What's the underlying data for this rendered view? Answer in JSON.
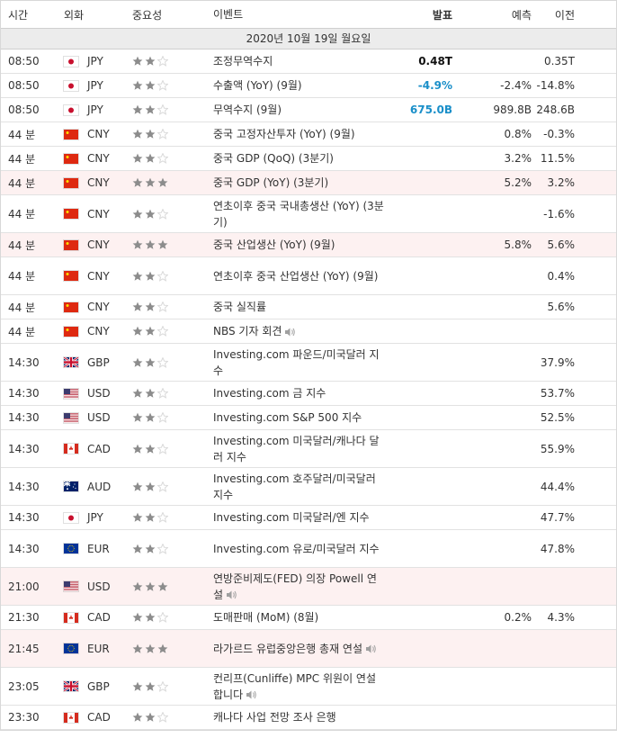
{
  "header": {
    "time": "시간",
    "currency": "외화",
    "importance": "중요성",
    "event": "이벤트",
    "actual": "발표",
    "forecast": "예측",
    "previous": "이전"
  },
  "date_label": "2020년 10월 19일 월요일",
  "colors": {
    "star_on": "#8c8c8c",
    "star_off": "#d9d9d9",
    "actual_green": "#1f8f2b",
    "actual_blue": "#1a8fc9",
    "highlight_bg": "#fdf1f1"
  },
  "rows": [
    {
      "time": "08:50",
      "flag": "jp",
      "currency": "JPY",
      "stars": 2,
      "event": "조정무역수지",
      "actual": "0.48T",
      "actual_color": "black",
      "forecast": "",
      "previous": "0.35T",
      "speaker": false,
      "highlight": false
    },
    {
      "time": "08:50",
      "flag": "jp",
      "currency": "JPY",
      "stars": 2,
      "event": "수출액 (YoY) (9월)",
      "actual": "-4.9%",
      "actual_color": "blue",
      "forecast": "-2.4%",
      "previous": "-14.8%",
      "speaker": false,
      "highlight": false
    },
    {
      "time": "08:50",
      "flag": "jp",
      "currency": "JPY",
      "stars": 2,
      "event": "무역수지 (9월)",
      "actual": "675.0B",
      "actual_color": "blue",
      "forecast": "989.8B",
      "previous": "248.6B",
      "speaker": false,
      "highlight": false
    },
    {
      "time": "44 분",
      "flag": "cn",
      "currency": "CNY",
      "stars": 2,
      "event": "중국 고정자산투자 (YoY) (9월)",
      "actual": "",
      "actual_color": "black",
      "forecast": "0.8%",
      "previous": "-0.3%",
      "speaker": false,
      "highlight": false
    },
    {
      "time": "44 분",
      "flag": "cn",
      "currency": "CNY",
      "stars": 2,
      "event": "중국 GDP (QoQ) (3분기)",
      "actual": "",
      "actual_color": "black",
      "forecast": "3.2%",
      "previous": "11.5%",
      "speaker": false,
      "highlight": false
    },
    {
      "time": "44 분",
      "flag": "cn",
      "currency": "CNY",
      "stars": 3,
      "event": "중국 GDP (YoY) (3분기)",
      "actual": "",
      "actual_color": "black",
      "forecast": "5.2%",
      "previous": "3.2%",
      "speaker": false,
      "highlight": true
    },
    {
      "time": "44 분",
      "flag": "cn",
      "currency": "CNY",
      "stars": 2,
      "event": "연초이후 중국 국내총생산 (YoY) (3분기)",
      "actual": "",
      "actual_color": "black",
      "forecast": "",
      "previous": "-1.6%",
      "speaker": false,
      "highlight": false
    },
    {
      "time": "44 분",
      "flag": "cn",
      "currency": "CNY",
      "stars": 3,
      "event": "중국 산업생산 (YoY) (9월)",
      "actual": "",
      "actual_color": "black",
      "forecast": "5.8%",
      "previous": "5.6%",
      "speaker": false,
      "highlight": true
    },
    {
      "time": "44 분",
      "flag": "cn",
      "currency": "CNY",
      "stars": 2,
      "event": "연초이후 중국 산업생산 (YoY) (9월)",
      "actual": "",
      "actual_color": "black",
      "forecast": "",
      "previous": "0.4%",
      "speaker": false,
      "highlight": false
    },
    {
      "time": "44 분",
      "flag": "cn",
      "currency": "CNY",
      "stars": 2,
      "event": "중국 실직률",
      "actual": "",
      "actual_color": "black",
      "forecast": "",
      "previous": "5.6%",
      "speaker": false,
      "highlight": false
    },
    {
      "time": "44 분",
      "flag": "cn",
      "currency": "CNY",
      "stars": 2,
      "event": "NBS 기자 회견",
      "actual": "",
      "actual_color": "black",
      "forecast": "",
      "previous": "",
      "speaker": true,
      "highlight": false
    },
    {
      "time": "14:30",
      "flag": "gb",
      "currency": "GBP",
      "stars": 2,
      "event": "Investing.com 파운드/미국달러 지수",
      "actual": "",
      "actual_color": "black",
      "forecast": "",
      "previous": "37.9%",
      "speaker": false,
      "highlight": false
    },
    {
      "time": "14:30",
      "flag": "us",
      "currency": "USD",
      "stars": 2,
      "event": "Investing.com 금 지수",
      "actual": "",
      "actual_color": "black",
      "forecast": "",
      "previous": "53.7%",
      "speaker": false,
      "highlight": false
    },
    {
      "time": "14:30",
      "flag": "us",
      "currency": "USD",
      "stars": 2,
      "event": "Investing.com S&P 500 지수",
      "actual": "",
      "actual_color": "black",
      "forecast": "",
      "previous": "52.5%",
      "speaker": false,
      "highlight": false
    },
    {
      "time": "14:30",
      "flag": "ca",
      "currency": "CAD",
      "stars": 2,
      "event": "Investing.com 미국달러/캐나다 달러 지수",
      "actual": "",
      "actual_color": "black",
      "forecast": "",
      "previous": "55.9%",
      "speaker": false,
      "highlight": false
    },
    {
      "time": "14:30",
      "flag": "au",
      "currency": "AUD",
      "stars": 2,
      "event": "Investing.com 호주달러/미국달러 지수",
      "actual": "",
      "actual_color": "black",
      "forecast": "",
      "previous": "44.4%",
      "speaker": false,
      "highlight": false
    },
    {
      "time": "14:30",
      "flag": "jp",
      "currency": "JPY",
      "stars": 2,
      "event": "Investing.com 미국달러/엔 지수",
      "actual": "",
      "actual_color": "black",
      "forecast": "",
      "previous": "47.7%",
      "speaker": false,
      "highlight": false
    },
    {
      "time": "14:30",
      "flag": "eu",
      "currency": "EUR",
      "stars": 2,
      "event": "Investing.com 유로/미국달러 지수",
      "actual": "",
      "actual_color": "black",
      "forecast": "",
      "previous": "47.8%",
      "speaker": false,
      "highlight": false
    },
    {
      "time": "21:00",
      "flag": "us",
      "currency": "USD",
      "stars": 3,
      "event": "연방준비제도(FED) 의장 Powell 연설",
      "actual": "",
      "actual_color": "black",
      "forecast": "",
      "previous": "",
      "speaker": true,
      "highlight": true
    },
    {
      "time": "21:30",
      "flag": "ca",
      "currency": "CAD",
      "stars": 2,
      "event": "도매판매 (MoM) (8월)",
      "actual": "",
      "actual_color": "black",
      "forecast": "0.2%",
      "previous": "4.3%",
      "speaker": false,
      "highlight": false
    },
    {
      "time": "21:45",
      "flag": "eu",
      "currency": "EUR",
      "stars": 3,
      "event": "라가르드 유럽중앙은행 총재 연설",
      "actual": "",
      "actual_color": "black",
      "forecast": "",
      "previous": "",
      "speaker": true,
      "highlight": true
    },
    {
      "time": "23:05",
      "flag": "gb",
      "currency": "GBP",
      "stars": 2,
      "event": "컨리프(Cunliffe) MPC 위원이 연설합니다",
      "actual": "",
      "actual_color": "black",
      "forecast": "",
      "previous": "",
      "speaker": true,
      "highlight": false
    },
    {
      "time": "23:30",
      "flag": "ca",
      "currency": "CAD",
      "stars": 2,
      "event": "캐나다 사업 전망 조사 은행",
      "actual": "",
      "actual_color": "black",
      "forecast": "",
      "previous": "",
      "speaker": false,
      "highlight": false
    }
  ]
}
